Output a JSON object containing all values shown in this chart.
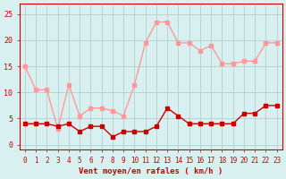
{
  "hours": [
    0,
    1,
    2,
    3,
    4,
    5,
    6,
    7,
    8,
    9,
    10,
    11,
    12,
    13,
    14,
    15,
    16,
    17,
    18,
    19,
    20,
    21,
    22,
    23
  ],
  "wind_avg": [
    4,
    4,
    4,
    3.5,
    4,
    2.5,
    3.5,
    3.5,
    1.5,
    2.5,
    2.5,
    2.5,
    3.5,
    7,
    5.5,
    4,
    4,
    4,
    4,
    4,
    6,
    6,
    7.5,
    7.5
  ],
  "wind_gust": [
    15,
    10.5,
    10.5,
    3,
    11.5,
    5.5,
    7,
    7,
    6.5,
    5.5,
    11.5,
    19.5,
    23.5,
    23.5,
    19.5,
    19.5,
    18,
    19,
    15.5,
    15.5,
    16,
    16,
    19.5,
    19.5
  ],
  "avg_color": "#cc0000",
  "gust_color": "#ff9999",
  "bg_color": "#d8f0f0",
  "grid_color": "#b0c8c8",
  "xlabel": "Vent moyen/en rafales ( km/h )",
  "xlabel_color": "#cc0000",
  "yticks": [
    0,
    5,
    10,
    15,
    20,
    25
  ],
  "ylim": [
    -1,
    27
  ],
  "xlim": [
    -0.5,
    23.5
  ],
  "tick_color": "#cc0000",
  "spine_color": "#cc0000"
}
